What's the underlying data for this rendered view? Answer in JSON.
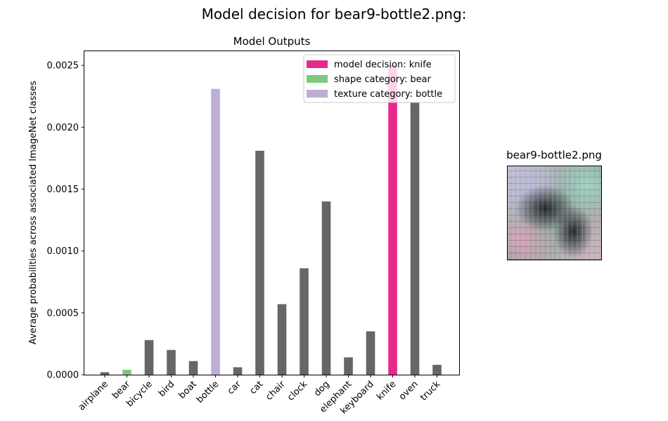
{
  "figure": {
    "suptitle": "Model decision for bear9-bottle2.png:",
    "image_title": "bear9-bottle2.png"
  },
  "colors": {
    "decision": "#e7298a",
    "shape": "#7fc97f",
    "texture": "#beaed4",
    "default": "#666666"
  },
  "chart_data": {
    "type": "bar",
    "title": "Model Outputs",
    "xlabel": "",
    "ylabel": "Average probabilities across associated ImageNet classes",
    "ylim": [
      0,
      0.00262
    ],
    "yticks": [
      "0.0000",
      "0.0005",
      "0.0010",
      "0.0015",
      "0.0020",
      "0.0025"
    ],
    "categories": [
      "airplane",
      "bear",
      "bicycle",
      "bird",
      "boat",
      "bottle",
      "car",
      "cat",
      "chair",
      "clock",
      "dog",
      "elephant",
      "keyboard",
      "knife",
      "oven",
      "truck"
    ],
    "values": [
      2e-05,
      4e-05,
      0.00028,
      0.0002,
      0.00011,
      0.00231,
      6e-05,
      0.00181,
      0.00057,
      0.00086,
      0.0014,
      0.00014,
      0.00035,
      0.0025,
      0.0022,
      8e-05
    ],
    "highlights": {
      "bear": "shape",
      "bottle": "texture",
      "knife": "decision"
    },
    "legend": [
      {
        "label": "model decision: knife",
        "role": "decision"
      },
      {
        "label": "shape category: bear",
        "role": "shape"
      },
      {
        "label": "texture category: bottle",
        "role": "texture"
      }
    ],
    "legend_position": "top-right",
    "grid": false
  }
}
